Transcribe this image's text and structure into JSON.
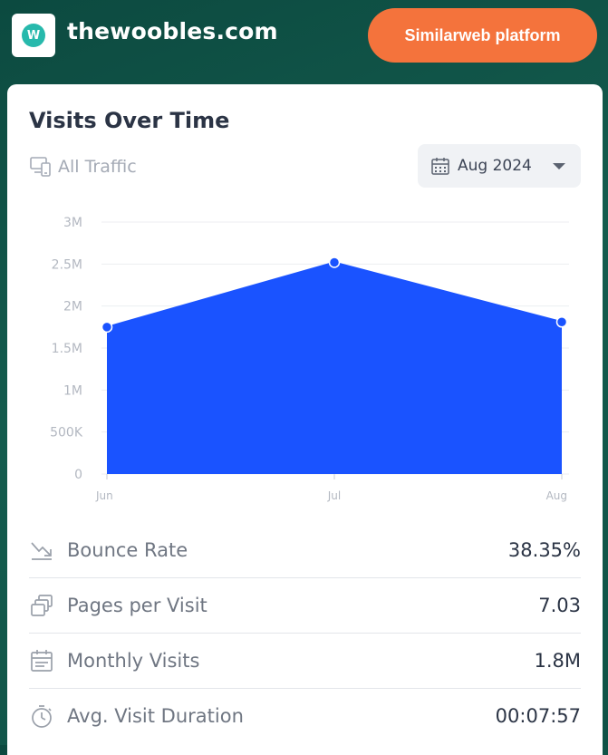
{
  "header": {
    "logo_letter": "W",
    "site_name": "thewoobles.com",
    "cta_label": "Similarweb platform"
  },
  "card": {
    "title": "Visits Over Time",
    "traffic_filter": "All Traffic",
    "date_selector": "Aug 2024"
  },
  "chart_data": {
    "type": "area",
    "title": "Visits Over Time",
    "categories": [
      "Jun",
      "Jul",
      "Aug"
    ],
    "values": [
      1750000,
      2520000,
      1810000
    ],
    "y_ticks": [
      "0",
      "500K",
      "1M",
      "1.5M",
      "2M",
      "2.5M",
      "3M"
    ],
    "ylim": [
      0,
      3000000
    ],
    "color": "#1a53ff",
    "grid": true
  },
  "metrics": [
    {
      "icon": "bounce-rate-icon",
      "label": "Bounce Rate",
      "value": "38.35%"
    },
    {
      "icon": "pages-per-visit-icon",
      "label": "Pages per Visit",
      "value": "7.03"
    },
    {
      "icon": "monthly-visits-icon",
      "label": "Monthly Visits",
      "value": "1.8M"
    },
    {
      "icon": "visit-duration-icon",
      "label": "Avg. Visit Duration",
      "value": "00:07:57"
    }
  ]
}
